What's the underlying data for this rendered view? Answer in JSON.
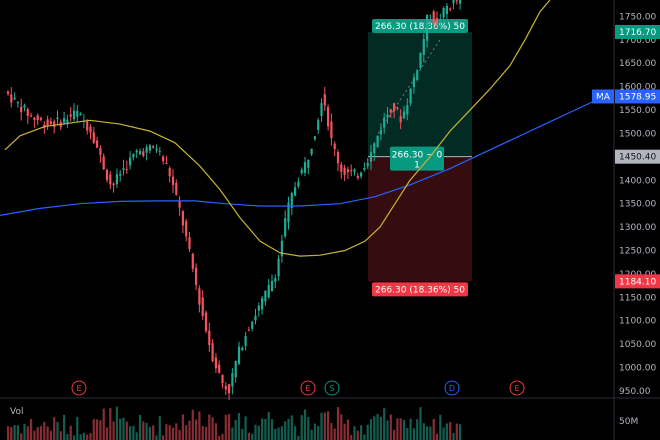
{
  "chart_data": {
    "type": "candlestick",
    "price_scale": {
      "ticks": [
        "1750.00",
        "1700.00",
        "1650.00",
        "1600.00",
        "1550.00",
        "1500.00",
        "1450.00",
        "1400.00",
        "1350.00",
        "1300.00",
        "1250.00",
        "1200.00",
        "1150.00",
        "1100.00",
        "1050.00",
        "1000.00",
        "950.00"
      ],
      "range": [
        935,
        1785
      ]
    },
    "badges": [
      {
        "label": "1716.70",
        "value": 1716.7,
        "color": "#089981",
        "name": "target-price-badge"
      },
      {
        "label": "1578.95",
        "value": 1578.95,
        "color": "#2962ff",
        "prefix": "MA",
        "name": "ma-value-badge"
      },
      {
        "label": "1450.40",
        "value": 1450.4,
        "color": "#b2b5be",
        "text_color": "#131722",
        "name": "entry-price-badge"
      },
      {
        "label": "1184.10",
        "value": 1184.1,
        "color": "#f23645",
        "name": "stop-price-badge"
      }
    ],
    "position_tool": {
      "entry": 1450.4,
      "target": 1716.7,
      "stop": 1184.1,
      "target_label": "266.30 (18.36%) 50",
      "stop_label": "266.30 (18.36%) 50",
      "center_label_line1": "266.30 ~ 0",
      "center_label_line2": "1"
    },
    "events": [
      {
        "label": "E",
        "kind": "earnings",
        "color": "#f23645"
      },
      {
        "label": "E",
        "kind": "earnings",
        "color": "#f23645"
      },
      {
        "label": "S",
        "kind": "split",
        "color": "#089981"
      },
      {
        "label": "D",
        "kind": "dividend",
        "color": "#2962ff"
      },
      {
        "label": "E",
        "kind": "earnings",
        "color": "#f23645"
      }
    ],
    "volume": {
      "label": "Vol",
      "tick": "50M"
    },
    "series": [
      {
        "kind": "ma-slow",
        "color": "#2962ff",
        "points": [
          [
            0,
            1325
          ],
          [
            40,
            1340
          ],
          [
            80,
            1350
          ],
          [
            120,
            1355
          ],
          [
            160,
            1356
          ],
          [
            195,
            1356
          ],
          [
            225,
            1350
          ],
          [
            260,
            1345
          ],
          [
            300,
            1345
          ],
          [
            340,
            1350
          ],
          [
            375,
            1365
          ],
          [
            410,
            1390
          ],
          [
            450,
            1425
          ],
          [
            490,
            1465
          ],
          [
            530,
            1505
          ],
          [
            570,
            1545
          ],
          [
            605,
            1580
          ]
        ]
      },
      {
        "kind": "ma-fast",
        "color": "#c8b432",
        "points": [
          [
            5,
            1465
          ],
          [
            20,
            1495
          ],
          [
            45,
            1515
          ],
          [
            90,
            1528
          ],
          [
            120,
            1520
          ],
          [
            150,
            1505
          ],
          [
            175,
            1480
          ],
          [
            200,
            1430
          ],
          [
            220,
            1380
          ],
          [
            240,
            1320
          ],
          [
            260,
            1270
          ],
          [
            280,
            1245
          ],
          [
            300,
            1238
          ],
          [
            320,
            1240
          ],
          [
            345,
            1250
          ],
          [
            365,
            1270
          ],
          [
            380,
            1300
          ],
          [
            395,
            1350
          ],
          [
            410,
            1400
          ],
          [
            430,
            1450
          ],
          [
            450,
            1505
          ],
          [
            470,
            1550
          ],
          [
            490,
            1595
          ],
          [
            510,
            1645
          ],
          [
            525,
            1700
          ],
          [
            540,
            1760
          ],
          [
            550,
            1785
          ]
        ]
      }
    ],
    "price_path": [
      [
        8,
        1590
      ],
      [
        20,
        1565
      ],
      [
        35,
        1535
      ],
      [
        50,
        1520
      ],
      [
        65,
        1525
      ],
      [
        80,
        1545
      ],
      [
        95,
        1505
      ],
      [
        105,
        1440
      ],
      [
        115,
        1385
      ],
      [
        125,
        1420
      ],
      [
        140,
        1460
      ],
      [
        160,
        1470
      ],
      [
        172,
        1420
      ],
      [
        185,
        1320
      ],
      [
        195,
        1220
      ],
      [
        205,
        1120
      ],
      [
        215,
        1030
      ],
      [
        225,
        970
      ],
      [
        232,
        950
      ],
      [
        240,
        1020
      ],
      [
        250,
        1080
      ],
      [
        260,
        1120
      ],
      [
        270,
        1160
      ],
      [
        280,
        1210
      ],
      [
        290,
        1330
      ],
      [
        300,
        1400
      ],
      [
        310,
        1440
      ],
      [
        320,
        1520
      ],
      [
        326,
        1590
      ],
      [
        335,
        1480
      ],
      [
        345,
        1420
      ],
      [
        360,
        1410
      ],
      [
        375,
        1460
      ],
      [
        385,
        1520
      ],
      [
        395,
        1560
      ],
      [
        405,
        1530
      ],
      [
        415,
        1600
      ],
      [
        425,
        1680
      ],
      [
        432,
        1760
      ],
      [
        440,
        1730
      ],
      [
        450,
        1770
      ],
      [
        462,
        1785
      ]
    ]
  }
}
